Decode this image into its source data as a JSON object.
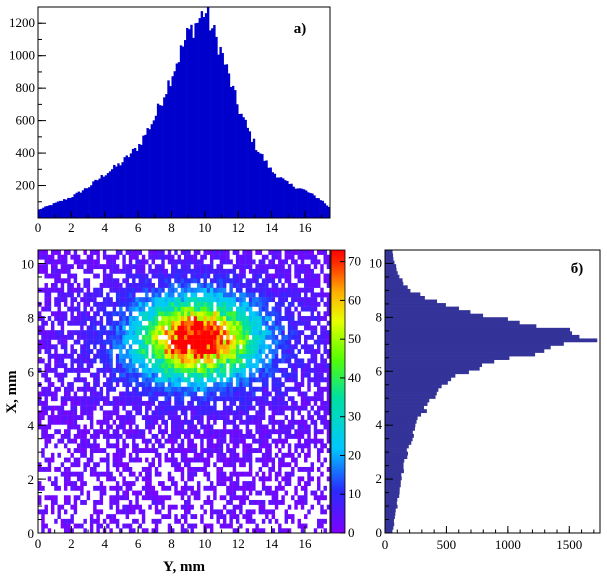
{
  "chart_data": [
    {
      "id": "a",
      "type": "bar",
      "panel_label": "a)",
      "xlabel": "",
      "ylabel": "",
      "xlim": [
        0,
        17.5
      ],
      "ylim": [
        0,
        1300
      ],
      "xticks": [
        "0",
        "2",
        "4",
        "6",
        "8",
        "10",
        "12",
        "14",
        "16"
      ],
      "yticks": [
        "200",
        "400",
        "600",
        "800",
        "1000",
        "1200"
      ],
      "color": "#0000cc",
      "series": [
        {
          "x": [
            0,
            2,
            3,
            4,
            5,
            6,
            7,
            8,
            9,
            9.5,
            10,
            10.5,
            11,
            12,
            13,
            14,
            15,
            16,
            17,
            17.5
          ],
          "values": [
            50,
            130,
            190,
            270,
            340,
            440,
            620,
            880,
            1140,
            1200,
            1280,
            1150,
            1020,
            680,
            450,
            290,
            210,
            170,
            110,
            60
          ]
        }
      ]
    },
    {
      "id": "heatmap",
      "type": "heatmap",
      "xlabel": "Y, mm",
      "ylabel": "X, mm",
      "xlim": [
        0,
        17.5
      ],
      "ylim": [
        0,
        10.5
      ],
      "xticks": [
        "0",
        "2",
        "4",
        "6",
        "8",
        "10",
        "12",
        "14",
        "16"
      ],
      "yticks": [
        "0",
        "2",
        "4",
        "6",
        "8",
        "10"
      ],
      "zlim": [
        0,
        73
      ],
      "colorbar_ticks": [
        "0",
        "10",
        "20",
        "30",
        "40",
        "50",
        "60",
        "70"
      ],
      "peak": {
        "x": 9.5,
        "y": 7.2,
        "value": 73
      },
      "spread": {
        "sx": 2.2,
        "sy": 0.9
      }
    },
    {
      "id": "b",
      "type": "bar",
      "orientation": "horizontal",
      "panel_label": "б)",
      "xlabel": "",
      "ylabel": "",
      "xlim": [
        0,
        1750
      ],
      "ylim": [
        0,
        10.5
      ],
      "xticks": [
        "0",
        "500",
        "1000",
        "1500"
      ],
      "yticks": [
        "0",
        "2",
        "4",
        "6",
        "8",
        "10"
      ],
      "color": "#333399",
      "series": [
        {
          "y": [
            0,
            0.5,
            1,
            2,
            3,
            4,
            5,
            5.5,
            6,
            6.5,
            7,
            7.2,
            7.5,
            8,
            8.5,
            9,
            9.5,
            10,
            10.5
          ],
          "values": [
            60,
            80,
            100,
            130,
            180,
            250,
            380,
            480,
            650,
            1050,
            1550,
            1650,
            1500,
            900,
            450,
            200,
            120,
            80,
            60
          ]
        }
      ]
    }
  ]
}
